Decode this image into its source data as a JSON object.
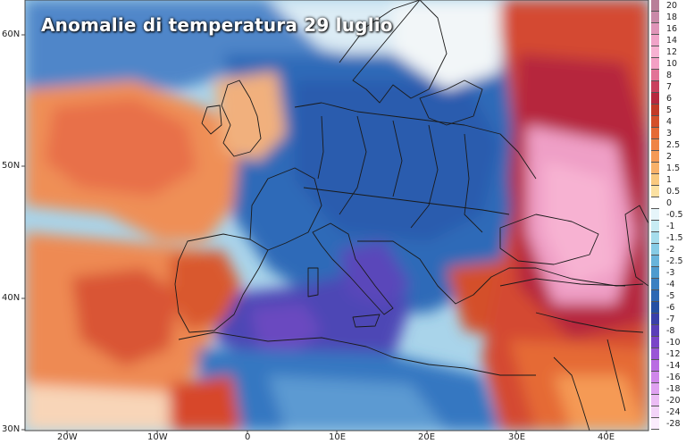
{
  "title": "Anomalie di temperatura 29 luglio",
  "lat_labels": [
    "60N",
    "50N",
    "40N",
    "30N"
  ],
  "lon_labels": [
    "20W",
    "10W",
    "0",
    "10E",
    "20E",
    "30E",
    "40E"
  ],
  "legend": [
    {
      "label": "20",
      "color": "#b87f99"
    },
    {
      "label": "18",
      "color": "#c98aa8"
    },
    {
      "label": "16",
      "color": "#df94b8"
    },
    {
      "label": "14",
      "color": "#f0a3c8"
    },
    {
      "label": "12",
      "color": "#f7b2d2"
    },
    {
      "label": "10",
      "color": "#f3a0c4"
    },
    {
      "label": "8",
      "color": "#e27396"
    },
    {
      "label": "7",
      "color": "#c9405d"
    },
    {
      "label": "6",
      "color": "#b6283e"
    },
    {
      "label": "5",
      "color": "#c23a26"
    },
    {
      "label": "4",
      "color": "#d4502a"
    },
    {
      "label": "3",
      "color": "#e56a35"
    },
    {
      "label": "2.5",
      "color": "#ef8445"
    },
    {
      "label": "2",
      "color": "#f59a55"
    },
    {
      "label": "1.5",
      "color": "#f8b169"
    },
    {
      "label": "1",
      "color": "#f9c97f"
    },
    {
      "label": "0.5",
      "color": "#fbe1a3"
    },
    {
      "label": "0",
      "color": "#ffffff"
    },
    {
      "label": "-0.5",
      "color": "#e6f5fa"
    },
    {
      "label": "-1",
      "color": "#c7ebf3"
    },
    {
      "label": "-1.5",
      "color": "#a6ddec"
    },
    {
      "label": "-2",
      "color": "#86cbe5"
    },
    {
      "label": "-2.5",
      "color": "#68b4db"
    },
    {
      "label": "-3",
      "color": "#4e9bcf"
    },
    {
      "label": "-4",
      "color": "#3a80c2"
    },
    {
      "label": "-5",
      "color": "#2c67b3"
    },
    {
      "label": "-6",
      "color": "#2550a3"
    },
    {
      "label": "-7",
      "color": "#3a3fa8"
    },
    {
      "label": "-8",
      "color": "#5a3eb8"
    },
    {
      "label": "-10",
      "color": "#7a44c8"
    },
    {
      "label": "-12",
      "color": "#9a55d6"
    },
    {
      "label": "-14",
      "color": "#b96ce2"
    },
    {
      "label": "-16",
      "color": "#cf86ea"
    },
    {
      "label": "-18",
      "color": "#dfa1f0"
    },
    {
      "label": "-20",
      "color": "#ebbcf4"
    },
    {
      "label": "-24",
      "color": "#f3d4f8"
    },
    {
      "label": "-28",
      "color": "#fbecfc"
    }
  ],
  "colors": {
    "ocean_warm": "#ef8f57",
    "ocean_hot": "#e25a3a",
    "cool_blue": "#3f7cc4",
    "deep_blue": "#2452a6",
    "purple": "#6a48c0",
    "pink": "#ef9fc6",
    "pale": "#f3f6fa"
  }
}
